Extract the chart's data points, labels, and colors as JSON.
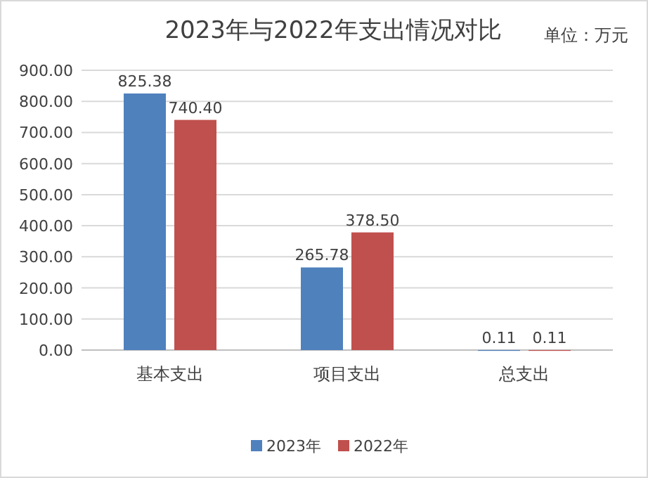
{
  "chart_data": {
    "type": "bar",
    "title": "2023年与2022年支出情况对比",
    "annotations": [
      "单位：万元"
    ],
    "categories": [
      "基本支出",
      "项目支出",
      "总支出"
    ],
    "series": [
      {
        "name": "2023年",
        "color": "#4f81bd",
        "values": [
          825.38,
          265.78,
          0.11
        ],
        "value_labels": [
          "825.38",
          "265.78",
          "0.11"
        ]
      },
      {
        "name": "2022年",
        "color": "#c0504d",
        "values": [
          740.4,
          378.5,
          0.11
        ],
        "value_labels": [
          "740.40",
          "378.50",
          "0.11"
        ]
      }
    ],
    "ylim": [
      0,
      900
    ],
    "yticks": [
      {
        "value": 0,
        "label": "0.00"
      },
      {
        "value": 100,
        "label": "100.00"
      },
      {
        "value": 200,
        "label": "200.00"
      },
      {
        "value": 300,
        "label": "300.00"
      },
      {
        "value": 400,
        "label": "400.00"
      },
      {
        "value": 500,
        "label": "500.00"
      },
      {
        "value": 600,
        "label": "600.00"
      },
      {
        "value": 700,
        "label": "700.00"
      },
      {
        "value": 800,
        "label": "800.00"
      },
      {
        "value": 900,
        "label": "900.00"
      }
    ],
    "grid": "y",
    "legend": "bottom"
  }
}
